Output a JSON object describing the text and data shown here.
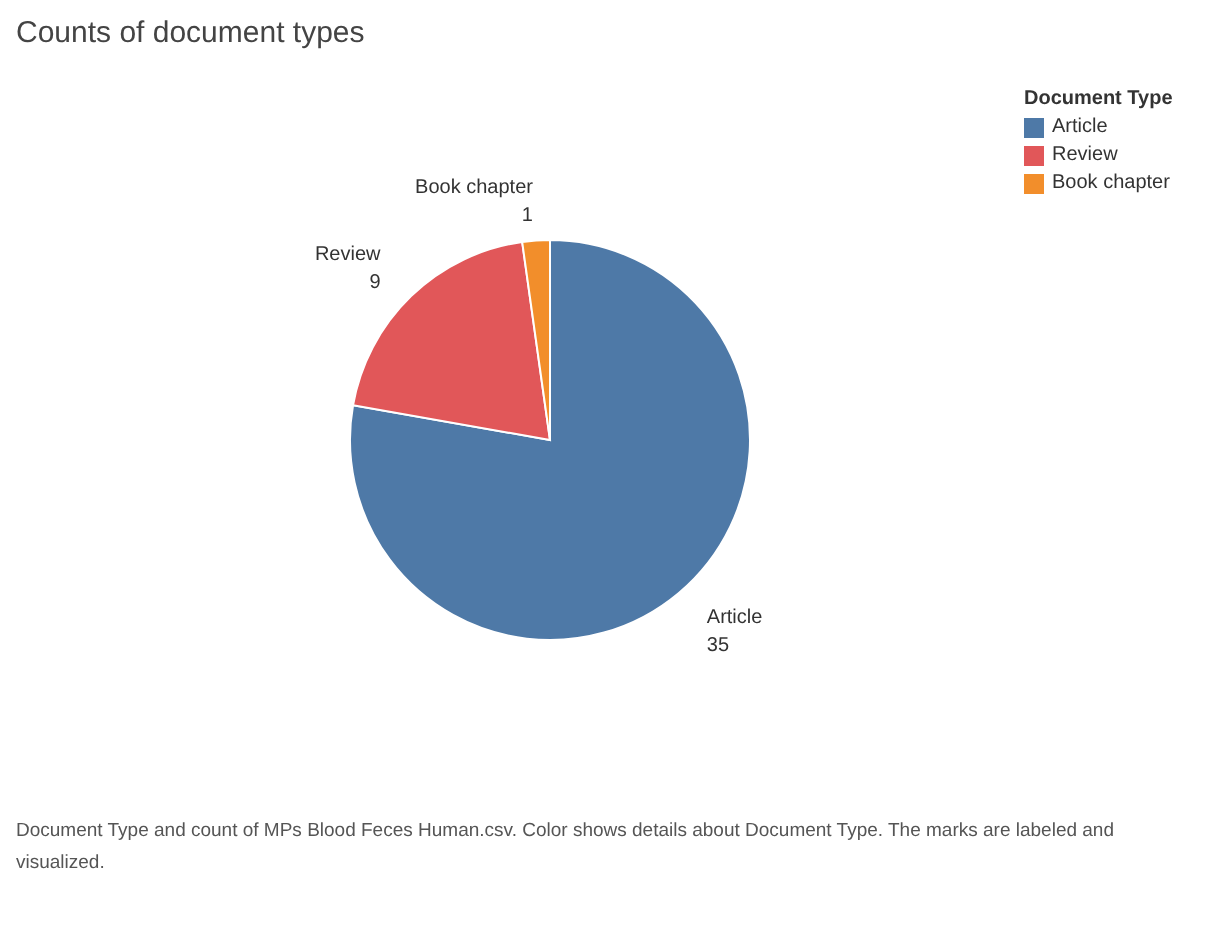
{
  "chart_data": {
    "type": "pie",
    "title": "Counts of document types",
    "categories": [
      "Article",
      "Review",
      "Book chapter"
    ],
    "values": [
      35,
      9,
      1
    ],
    "colors": [
      "#4e79a7",
      "#e15759",
      "#f28e2b"
    ],
    "data_labels": true,
    "legend": "top right",
    "legend_title": "Document Type",
    "annotations": [
      "Document Type and count of MPs Blood Feces Human.csv. Color shows details about Document Type. The marks are labeled and visualized."
    ]
  }
}
